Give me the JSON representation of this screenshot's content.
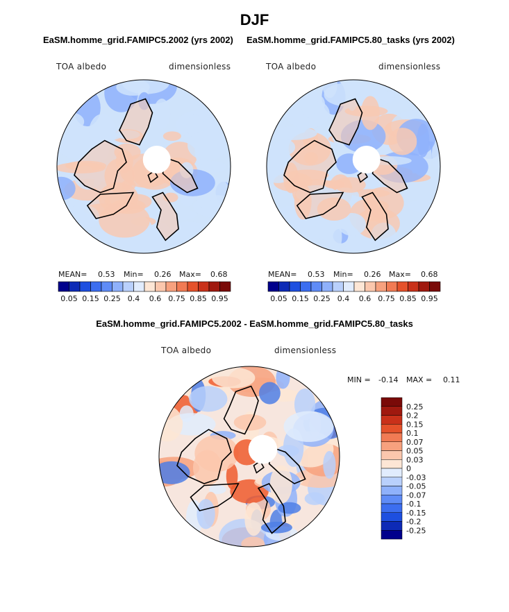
{
  "figure": {
    "title": "DJF",
    "colors": {
      "land": "#000000",
      "pole_hole": "#ffffff",
      "low": "#cfe3fb",
      "high": "#f8c9b3",
      "blue_strong": "#4f7fe6",
      "red_strong": "#ee5a2e"
    }
  },
  "chart_data": [
    {
      "type": "heatmap",
      "projection": "polar-stereographic",
      "panel_title": "EaSM.homme_grid.FAMIPC5.2002 (yrs 2002)",
      "variable": "TOA albedo",
      "units": "dimensionless",
      "stats": {
        "mean_label": "MEAN=",
        "mean": "0.53",
        "min_label": "Min=",
        "min": "0.26",
        "max_label": "Max=",
        "max": "0.68"
      },
      "colorbar": {
        "orientation": "horizontal",
        "tick_labels": [
          "0.05",
          "0.15",
          "0.25",
          "0.4",
          "0.6",
          "0.75",
          "0.85",
          "0.95"
        ],
        "levels": [
          0.05,
          0.1,
          0.15,
          0.2,
          0.25,
          0.3,
          0.4,
          0.5,
          0.6,
          0.7,
          0.75,
          0.8,
          0.85,
          0.9,
          0.95
        ],
        "colors": [
          "#00008c",
          "#0d2ab6",
          "#1d4fe0",
          "#3c6ef0",
          "#5f8cf7",
          "#8fb1fb",
          "#b9d0fc",
          "#e1ecfd",
          "#fde6d5",
          "#fbc7ad",
          "#f7a17e",
          "#f17b54",
          "#e5522b",
          "#c9311a",
          "#a0190f",
          "#7a0a08"
        ]
      }
    },
    {
      "type": "heatmap",
      "projection": "polar-stereographic",
      "panel_title": "EaSM.homme_grid.FAMIPC5.80_tasks (yrs 2002)",
      "variable": "TOA albedo",
      "units": "dimensionless",
      "stats": {
        "mean_label": "MEAN=",
        "mean": "0.53",
        "min_label": "Min=",
        "min": "0.26",
        "max_label": "Max=",
        "max": "0.68"
      },
      "colorbar": {
        "orientation": "horizontal",
        "tick_labels": [
          "0.05",
          "0.15",
          "0.25",
          "0.4",
          "0.6",
          "0.75",
          "0.85",
          "0.95"
        ],
        "levels": [
          0.05,
          0.1,
          0.15,
          0.2,
          0.25,
          0.3,
          0.4,
          0.5,
          0.6,
          0.7,
          0.75,
          0.8,
          0.85,
          0.9,
          0.95
        ],
        "colors": [
          "#00008c",
          "#0d2ab6",
          "#1d4fe0",
          "#3c6ef0",
          "#5f8cf7",
          "#8fb1fb",
          "#b9d0fc",
          "#e1ecfd",
          "#fde6d5",
          "#fbc7ad",
          "#f7a17e",
          "#f17b54",
          "#e5522b",
          "#c9311a",
          "#a0190f",
          "#7a0a08"
        ]
      }
    },
    {
      "type": "heatmap",
      "projection": "polar-stereographic",
      "panel_title": "EaSM.homme_grid.FAMIPC5.2002 - EaSM.homme_grid.FAMIPC5.80_tasks",
      "variable": "TOA albedo",
      "units": "dimensionless",
      "stats": {
        "min_label": "MIN =",
        "min": "-0.14",
        "max_label": "MAX =",
        "max": "0.11"
      },
      "colorbar": {
        "orientation": "vertical",
        "tick_labels": [
          "0.25",
          "0.2",
          "0.15",
          "0.1",
          "0.07",
          "0.05",
          "0.03",
          "0",
          "-0.03",
          "-0.05",
          "-0.07",
          "-0.1",
          "-0.15",
          "-0.2",
          "-0.25"
        ],
        "levels": [
          0.25,
          0.2,
          0.15,
          0.1,
          0.07,
          0.05,
          0.03,
          0,
          -0.03,
          -0.05,
          -0.07,
          -0.1,
          -0.15,
          -0.2,
          -0.25
        ],
        "colors": [
          "#7a0a08",
          "#a0190f",
          "#c9311a",
          "#e5522b",
          "#f17b54",
          "#f7a17e",
          "#fbc7ad",
          "#fde6d5",
          "#e1ecfd",
          "#b9d0fc",
          "#8fb1fb",
          "#5f8cf7",
          "#3c6ef0",
          "#1d4fe0",
          "#0d2ab6",
          "#00008c"
        ]
      }
    }
  ]
}
